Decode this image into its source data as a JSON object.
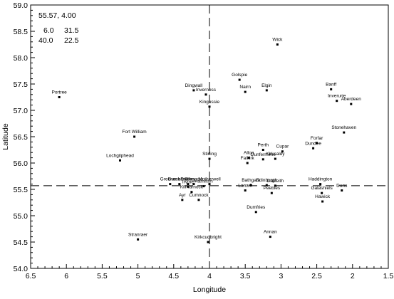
{
  "chart_data": {
    "type": "scatter",
    "title": "",
    "xlabel": "Longitude",
    "ylabel": "Latitude",
    "xlim": [
      6.5,
      1.5
    ],
    "ylim": [
      54.0,
      59.0
    ],
    "x_reversed": true,
    "xticks": [
      "6.5",
      "6",
      "5.5",
      "5",
      "4.5",
      "4",
      "3.5",
      "3",
      "2.5",
      "2",
      "1.5"
    ],
    "yticks": [
      "54.0",
      "54.5",
      "55.0",
      "55.5",
      "56.0",
      "56.5",
      "57.0",
      "57.5",
      "58.0",
      "58.5",
      "59.0"
    ],
    "grid": false,
    "crosshair": {
      "longitude": 4.0,
      "latitude": 55.57
    },
    "info_box": {
      "coordinate": "55.57, 4.00",
      "row1_left": "6.0",
      "row1_right": "31.5",
      "row2_left": "40.0",
      "row2_right": "22.5"
    },
    "points": [
      {
        "label": "Wick",
        "x": 3.05,
        "y": 58.25
      },
      {
        "label": "Golspie",
        "x": 3.58,
        "y": 57.58
      },
      {
        "label": "Nairn",
        "x": 3.5,
        "y": 57.35
      },
      {
        "label": "Elgin",
        "x": 3.2,
        "y": 57.38
      },
      {
        "label": "Banff",
        "x": 2.3,
        "y": 57.4
      },
      {
        "label": "Dingwall",
        "x": 4.22,
        "y": 57.38
      },
      {
        "label": "Inverness",
        "x": 4.05,
        "y": 57.3
      },
      {
        "label": "Portree",
        "x": 6.1,
        "y": 57.25
      },
      {
        "label": "Inverurie",
        "x": 2.22,
        "y": 57.18
      },
      {
        "label": "Aberdeen",
        "x": 2.02,
        "y": 57.12
      },
      {
        "label": "Kingussie",
        "x": 4.0,
        "y": 57.07
      },
      {
        "label": "Stonehaven",
        "x": 2.12,
        "y": 56.58
      },
      {
        "label": "Fort William",
        "x": 5.05,
        "y": 56.5
      },
      {
        "label": "Forfar",
        "x": 2.5,
        "y": 56.38
      },
      {
        "label": "Dundee",
        "x": 2.55,
        "y": 56.28
      },
      {
        "label": "Perth",
        "x": 3.25,
        "y": 56.25
      },
      {
        "label": "Cupar",
        "x": 2.98,
        "y": 56.22
      },
      {
        "label": "Stirling",
        "x": 4.0,
        "y": 56.08
      },
      {
        "label": "Alloa",
        "x": 3.45,
        "y": 56.1
      },
      {
        "label": "Dunfermline",
        "x": 3.25,
        "y": 56.07
      },
      {
        "label": "Kirkcaldy",
        "x": 3.08,
        "y": 56.08
      },
      {
        "label": "Falkirk",
        "x": 3.47,
        "y": 56.0
      },
      {
        "label": "Lochgilphead",
        "x": 5.25,
        "y": 56.05
      },
      {
        "label": "Greenock",
        "x": 4.55,
        "y": 55.6
      },
      {
        "label": "Dumbarton",
        "x": 4.42,
        "y": 55.6
      },
      {
        "label": "Paisley",
        "x": 4.3,
        "y": 55.6
      },
      {
        "label": "Glasgow",
        "x": 4.22,
        "y": 55.6
      },
      {
        "label": "Motherwell",
        "x": 4.0,
        "y": 55.6
      },
      {
        "label": "Hamilton",
        "x": 4.08,
        "y": 55.56
      },
      {
        "label": "Irvine",
        "x": 4.3,
        "y": 55.55
      },
      {
        "label": "Kilmarnock",
        "x": 4.25,
        "y": 55.45
      },
      {
        "label": "Ayr",
        "x": 4.38,
        "y": 55.3
      },
      {
        "label": "Cumnock",
        "x": 4.15,
        "y": 55.3
      },
      {
        "label": "Lanark",
        "x": 3.5,
        "y": 55.48
      },
      {
        "label": "Bathgate",
        "x": 3.42,
        "y": 55.58
      },
      {
        "label": "Edinburgh",
        "x": 3.2,
        "y": 55.58
      },
      {
        "label": "Dalkeith",
        "x": 3.08,
        "y": 55.57
      },
      {
        "label": "Peebles",
        "x": 3.13,
        "y": 55.43
      },
      {
        "label": "Haddington",
        "x": 2.45,
        "y": 55.6
      },
      {
        "label": "Duns",
        "x": 2.15,
        "y": 55.48
      },
      {
        "label": "Galashiels",
        "x": 2.43,
        "y": 55.43
      },
      {
        "label": "Hawick",
        "x": 2.42,
        "y": 55.27
      },
      {
        "label": "Dumfries",
        "x": 3.35,
        "y": 55.07
      },
      {
        "label": "Annan",
        "x": 3.15,
        "y": 54.6
      },
      {
        "label": "Stranraer",
        "x": 5.0,
        "y": 54.55
      },
      {
        "label": "Kirkcudbright",
        "x": 4.02,
        "y": 54.5
      }
    ]
  }
}
